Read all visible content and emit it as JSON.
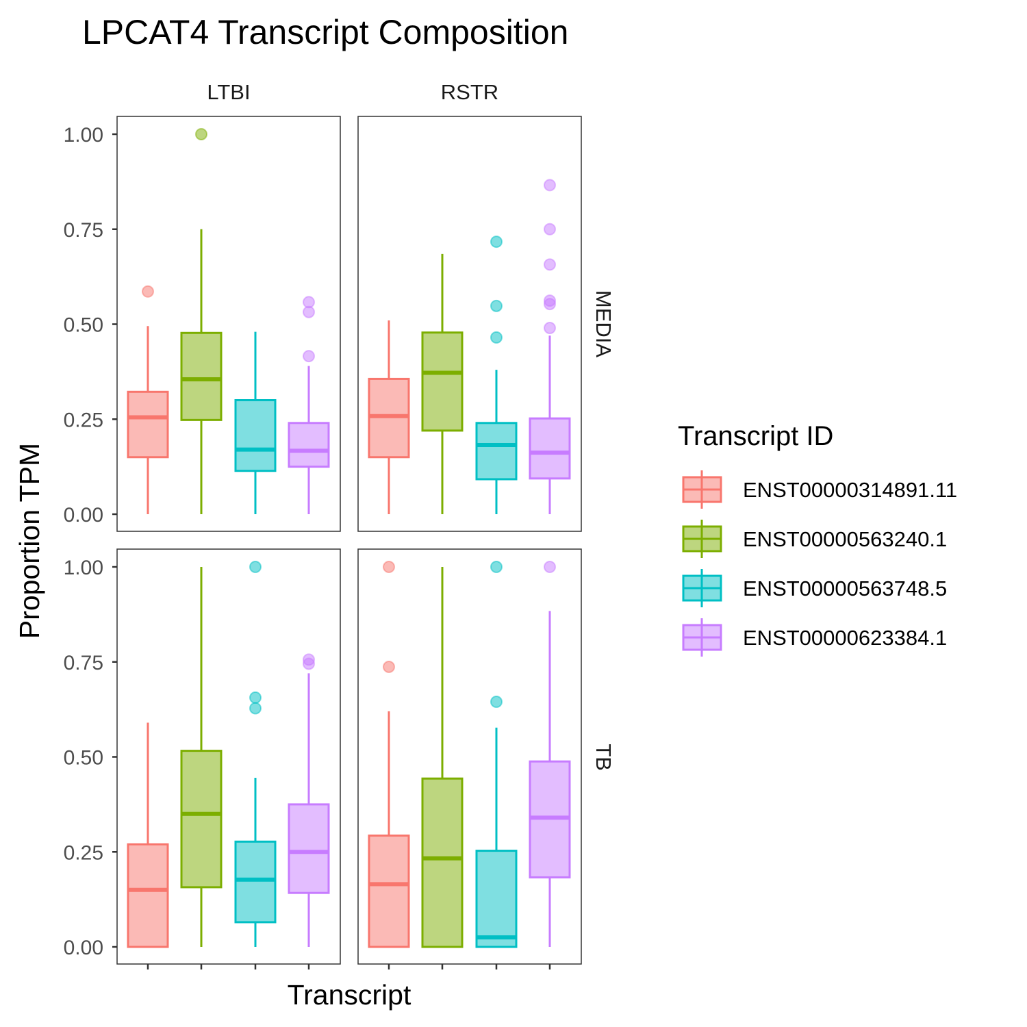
{
  "chart_data": {
    "type": "boxplot",
    "title": "LPCAT4 Transcript Composition",
    "xlabel": "Transcript",
    "ylabel": "Proportion TPM",
    "ylim": [
      0,
      1
    ],
    "yticks": [
      "0.00",
      "0.25",
      "0.50",
      "0.75",
      "1.00"
    ],
    "facet_columns": [
      "LTBI",
      "RSTR"
    ],
    "facet_rows": [
      "MEDIA",
      "TB"
    ],
    "legend": {
      "title": "Transcript ID",
      "position": "right",
      "entries": [
        "ENST00000314891.11",
        "ENST00000563240.1",
        "ENST00000563748.5",
        "ENST00000623384.1"
      ]
    },
    "colors": {
      "ENST00000314891.11": "#F8766D",
      "ENST00000563240.1": "#7CAE00",
      "ENST00000563748.5": "#00BFC4",
      "ENST00000623384.1": "#C77CFF"
    },
    "panels": [
      {
        "row": "MEDIA",
        "col": "LTBI",
        "boxes": [
          {
            "transcript": "ENST00000314891.11",
            "min": 0.0,
            "q1": 0.15,
            "median": 0.255,
            "q3": 0.322,
            "max": 0.495,
            "outliers": [
              0.586
            ]
          },
          {
            "transcript": "ENST00000563240.1",
            "min": 0.0,
            "q1": 0.248,
            "median": 0.355,
            "q3": 0.477,
            "max": 0.75,
            "outliers": [
              1.0
            ]
          },
          {
            "transcript": "ENST00000563748.5",
            "min": 0.0,
            "q1": 0.114,
            "median": 0.17,
            "q3": 0.3,
            "max": 0.48,
            "outliers": []
          },
          {
            "transcript": "ENST00000623384.1",
            "min": 0.0,
            "q1": 0.125,
            "median": 0.167,
            "q3": 0.24,
            "max": 0.39,
            "outliers": [
              0.416,
              0.532,
              0.558
            ]
          }
        ]
      },
      {
        "row": "MEDIA",
        "col": "RSTR",
        "boxes": [
          {
            "transcript": "ENST00000314891.11",
            "min": 0.0,
            "q1": 0.15,
            "median": 0.258,
            "q3": 0.356,
            "max": 0.51,
            "outliers": []
          },
          {
            "transcript": "ENST00000563240.1",
            "min": 0.0,
            "q1": 0.22,
            "median": 0.372,
            "q3": 0.478,
            "max": 0.685,
            "outliers": []
          },
          {
            "transcript": "ENST00000563748.5",
            "min": 0.0,
            "q1": 0.092,
            "median": 0.182,
            "q3": 0.24,
            "max": 0.38,
            "outliers": [
              0.465,
              0.548,
              0.717
            ]
          },
          {
            "transcript": "ENST00000623384.1",
            "min": 0.0,
            "q1": 0.094,
            "median": 0.162,
            "q3": 0.252,
            "max": 0.47,
            "outliers": [
              0.49,
              0.553,
              0.562,
              0.657,
              0.75,
              0.866
            ]
          }
        ]
      },
      {
        "row": "TB",
        "col": "LTBI",
        "boxes": [
          {
            "transcript": "ENST00000314891.11",
            "min": 0.0,
            "q1": 0.0,
            "median": 0.15,
            "q3": 0.27,
            "max": 0.59,
            "outliers": []
          },
          {
            "transcript": "ENST00000563240.1",
            "min": 0.0,
            "q1": 0.157,
            "median": 0.35,
            "q3": 0.516,
            "max": 1.0,
            "outliers": []
          },
          {
            "transcript": "ENST00000563748.5",
            "min": 0.0,
            "q1": 0.065,
            "median": 0.177,
            "q3": 0.277,
            "max": 0.445,
            "outliers": [
              0.628,
              0.656,
              1.0
            ]
          },
          {
            "transcript": "ENST00000623384.1",
            "min": 0.0,
            "q1": 0.142,
            "median": 0.25,
            "q3": 0.375,
            "max": 0.72,
            "outliers": [
              0.745,
              0.756
            ]
          }
        ]
      },
      {
        "row": "TB",
        "col": "RSTR",
        "boxes": [
          {
            "transcript": "ENST00000314891.11",
            "min": 0.0,
            "q1": 0.0,
            "median": 0.165,
            "q3": 0.293,
            "max": 0.62,
            "outliers": [
              0.737,
              1.0
            ]
          },
          {
            "transcript": "ENST00000563240.1",
            "min": 0.0,
            "q1": 0.0,
            "median": 0.233,
            "q3": 0.443,
            "max": 1.0,
            "outliers": []
          },
          {
            "transcript": "ENST00000563748.5",
            "min": 0.0,
            "q1": 0.0,
            "median": 0.025,
            "q3": 0.253,
            "max": 0.577,
            "outliers": [
              0.645,
              1.0
            ]
          },
          {
            "transcript": "ENST00000623384.1",
            "min": 0.0,
            "q1": 0.183,
            "median": 0.34,
            "q3": 0.488,
            "max": 0.884,
            "outliers": [
              1.0
            ]
          }
        ]
      }
    ]
  }
}
